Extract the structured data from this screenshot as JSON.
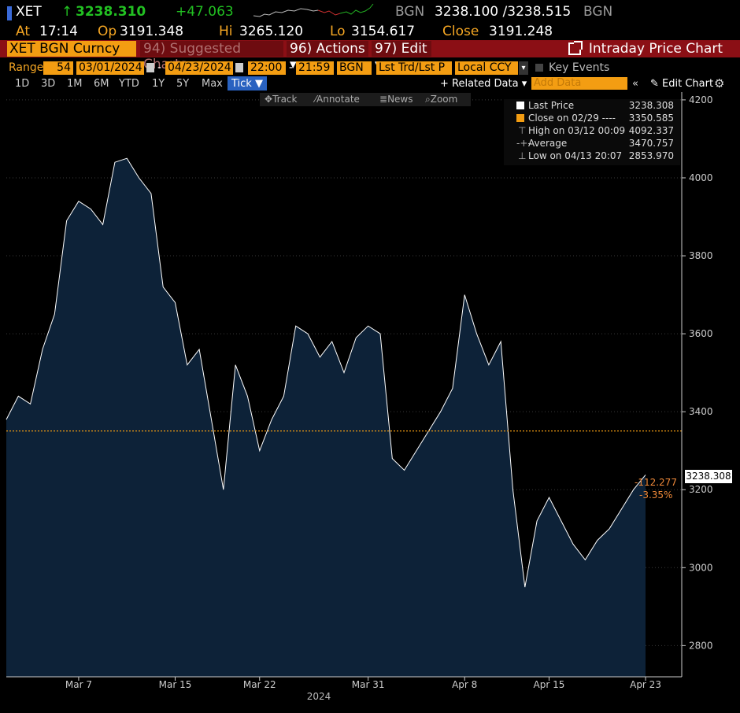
{
  "header": {
    "ticker": "XET",
    "direction_arrow": "↑",
    "last_price": "3238.310",
    "change": "+47.063",
    "source_left": "BGN",
    "bid_ask": "3238.100 /3238.515",
    "source_right": "BGN",
    "accent": "#22c022"
  },
  "stats": {
    "at_label": "At",
    "at_value": "17:14",
    "open_label": "Op",
    "open_value": "3191.348",
    "high_label": "Hi",
    "high_value": "3265.120",
    "low_label": "Lo",
    "low_value": "3154.617",
    "close_label": "Close",
    "close_value": "3191.248"
  },
  "title_bar": {
    "security": "XET BGN Curncy",
    "suggested": "94) Suggested Charts ▾",
    "actions": "96) Actions ▾",
    "edit": "97) Edit ▾",
    "title": "Intraday Price Chart"
  },
  "range_bar": {
    "label": "Range",
    "count": "54",
    "start_date": "03/01/2024",
    "end_date": "04/23/2024",
    "start_time": "22:00",
    "end_time": "21:59",
    "source": "BGN",
    "field": "Lst Trd/Lst P",
    "currency": "Local CCY",
    "key_events": "Key Events"
  },
  "period_tabs": [
    "1D",
    "3D",
    "1M",
    "6M",
    "YTD",
    "1Y",
    "5Y",
    "Max",
    "Tick ▼"
  ],
  "right_controls": {
    "related": "+ Related Data ▾",
    "add_data_placeholder": "Add Data",
    "collapse": "«",
    "edit_chart": "Edit Chart"
  },
  "chart_toolbar": {
    "track": "Track",
    "annotate": "Annotate",
    "news": "News",
    "zoom": "Zoom"
  },
  "legend": {
    "last_price_label": "Last Price",
    "last_price_value": "3238.308",
    "close_label": "Close on 02/29 ----",
    "close_value": "3350.585",
    "high_label": "High on 03/12 00:09",
    "high_value": "4092.337",
    "average_label": "Average",
    "average_value": "3470.757",
    "low_label": "Low on 04/13 20:07",
    "low_value": "2853.970"
  },
  "price_tag": "3238.308",
  "change_tag": {
    "abs": "-112.277",
    "pct": "-3.35%"
  },
  "colors": {
    "accent_orange": "#f39d12",
    "title_red": "#8b0f15",
    "area_fill": "#0d2238",
    "close_line": "#f39d12",
    "price_line": "#ffffff"
  },
  "chart_data": {
    "type": "area",
    "title": "Intraday Price Chart",
    "xlabel": "2024",
    "ylabel": "",
    "ylim": [
      2720,
      4220
    ],
    "y_ticks": [
      2800,
      3000,
      3200,
      3400,
      3600,
      3800,
      4000,
      4200
    ],
    "x_tick_labels": [
      "Mar 7",
      "Mar 15",
      "Mar 22",
      "Mar 31",
      "Apr 8",
      "Apr 15",
      "Apr 23"
    ],
    "x_tick_dates": [
      "2024-03-07",
      "2024-03-15",
      "2024-03-22",
      "2024-03-31",
      "2024-04-08",
      "2024-04-15",
      "2024-04-23"
    ],
    "x_range": [
      "2024-03-01",
      "2024-04-26"
    ],
    "previous_close": 3350.585,
    "series": [
      {
        "name": "Last Price",
        "x": [
          "2024-03-01",
          "2024-03-02",
          "2024-03-03",
          "2024-03-04",
          "2024-03-05",
          "2024-03-06",
          "2024-03-07",
          "2024-03-08",
          "2024-03-09",
          "2024-03-10",
          "2024-03-11",
          "2024-03-12",
          "2024-03-13",
          "2024-03-14",
          "2024-03-15",
          "2024-03-16",
          "2024-03-17",
          "2024-03-18",
          "2024-03-19",
          "2024-03-20",
          "2024-03-21",
          "2024-03-22",
          "2024-03-23",
          "2024-03-24",
          "2024-03-25",
          "2024-03-26",
          "2024-03-27",
          "2024-03-28",
          "2024-03-29",
          "2024-03-30",
          "2024-03-31",
          "2024-04-01",
          "2024-04-02",
          "2024-04-03",
          "2024-04-04",
          "2024-04-05",
          "2024-04-06",
          "2024-04-07",
          "2024-04-08",
          "2024-04-09",
          "2024-04-10",
          "2024-04-11",
          "2024-04-12",
          "2024-04-13",
          "2024-04-14",
          "2024-04-15",
          "2024-04-16",
          "2024-04-17",
          "2024-04-18",
          "2024-04-19",
          "2024-04-20",
          "2024-04-21",
          "2024-04-22",
          "2024-04-23"
        ],
        "values": [
          3380,
          3440,
          3420,
          3560,
          3650,
          3890,
          3940,
          3920,
          3880,
          4040,
          4050,
          4000,
          3960,
          3720,
          3680,
          3520,
          3560,
          3380,
          3200,
          3520,
          3440,
          3300,
          3380,
          3440,
          3620,
          3600,
          3540,
          3580,
          3500,
          3590,
          3620,
          3600,
          3280,
          3250,
          3300,
          3350,
          3400,
          3460,
          3700,
          3600,
          3520,
          3580,
          3200,
          2950,
          3120,
          3180,
          3120,
          3060,
          3020,
          3070,
          3100,
          3150,
          3200,
          3238
        ]
      }
    ]
  }
}
